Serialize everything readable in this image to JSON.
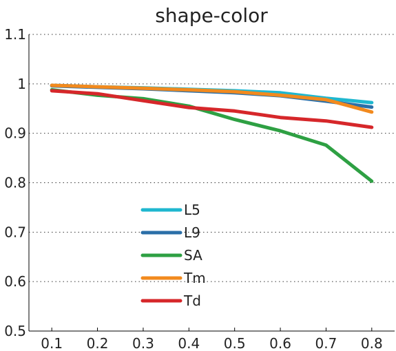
{
  "chart_data": {
    "type": "line",
    "title": "shape-color",
    "xlabel": "",
    "ylabel": "",
    "x": [
      0.1,
      0.2,
      0.3,
      0.4,
      0.5,
      0.6,
      0.7,
      0.8
    ],
    "x_ticks": [
      "0.1",
      "0.2",
      "0.3",
      "0.4",
      "0.5",
      "0.6",
      "0.7",
      "0.8"
    ],
    "y_ticks": [
      "0.5",
      "0.6",
      "0.7",
      "0.8",
      "0.9",
      "1",
      "1.1"
    ],
    "xlim": [
      0.05,
      0.85
    ],
    "ylim": [
      0.5,
      1.1
    ],
    "grid": "horizontal-dotted",
    "legend_position": "center-left",
    "series": [
      {
        "name": "L5",
        "color": "#1fb7cf",
        "values": [
          0.997,
          0.994,
          0.992,
          0.989,
          0.986,
          0.982,
          0.971,
          0.962
        ]
      },
      {
        "name": "L9",
        "color": "#2b6fa8",
        "values": [
          0.996,
          0.993,
          0.99,
          0.986,
          0.982,
          0.976,
          0.965,
          0.953
        ]
      },
      {
        "name": "SA",
        "color": "#2ea043",
        "values": [
          0.988,
          0.977,
          0.97,
          0.955,
          0.928,
          0.905,
          0.876,
          0.803
        ]
      },
      {
        "name": "Tm",
        "color": "#f28a1e",
        "values": [
          0.997,
          0.994,
          0.991,
          0.988,
          0.984,
          0.977,
          0.968,
          0.943
        ]
      },
      {
        "name": "Td",
        "color": "#d6272a",
        "values": [
          0.986,
          0.98,
          0.966,
          0.952,
          0.945,
          0.932,
          0.925,
          0.912
        ]
      }
    ]
  }
}
